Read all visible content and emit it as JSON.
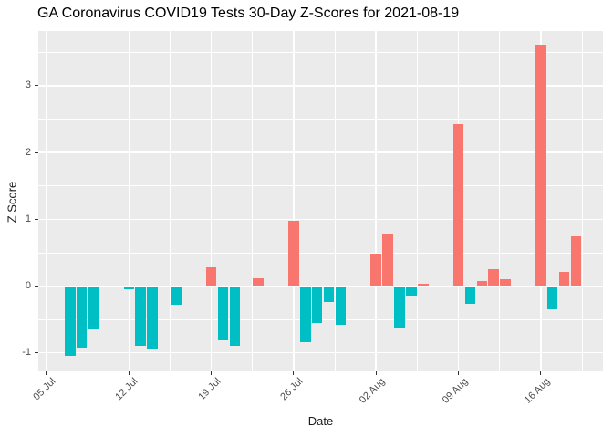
{
  "chart_data": {
    "type": "bar",
    "title": "GA Coronavirus COVID19 Tests 30-Day Z-Scores for 2021-08-19",
    "xlabel": "Date",
    "ylabel": "Z Score",
    "legend": "none",
    "grid": {
      "panel_bg": "#EBEBEB",
      "major": "#FFFFFF",
      "minor": "#FFFFFF"
    },
    "colors": {
      "positive": "#F8766D",
      "negative": "#00BFC4",
      "axis_text": "#4D4D4D"
    },
    "y_ticks": [
      -1,
      0,
      1,
      2,
      3
    ],
    "ylim": [
      -1.28,
      3.82
    ],
    "x_ticks": [
      {
        "label": "05 Jul",
        "date": "2021-07-05"
      },
      {
        "label": "12 Jul",
        "date": "2021-07-12"
      },
      {
        "label": "19 Jul",
        "date": "2021-07-19"
      },
      {
        "label": "26 Jul",
        "date": "2021-07-26"
      },
      {
        "label": "02 Aug",
        "date": "2021-08-02"
      },
      {
        "label": "09 Aug",
        "date": "2021-08-09"
      },
      {
        "label": "16 Aug",
        "date": "2021-08-16"
      }
    ],
    "xlim": [
      "2021-07-04",
      "2021-08-21"
    ],
    "bars": [
      {
        "date": "2021-07-07",
        "value": -1.05
      },
      {
        "date": "2021-07-08",
        "value": -0.92
      },
      {
        "date": "2021-07-09",
        "value": -0.65
      },
      {
        "date": "2021-07-12",
        "value": -0.05
      },
      {
        "date": "2021-07-13",
        "value": -0.9
      },
      {
        "date": "2021-07-14",
        "value": -0.95
      },
      {
        "date": "2021-07-16",
        "value": -0.28
      },
      {
        "date": "2021-07-19",
        "value": 0.28
      },
      {
        "date": "2021-07-20",
        "value": -0.81
      },
      {
        "date": "2021-07-21",
        "value": -0.89
      },
      {
        "date": "2021-07-23",
        "value": 0.12
      },
      {
        "date": "2021-07-26",
        "value": 0.97
      },
      {
        "date": "2021-07-27",
        "value": -0.84
      },
      {
        "date": "2021-07-28",
        "value": -0.56
      },
      {
        "date": "2021-07-29",
        "value": -0.24
      },
      {
        "date": "2021-07-30",
        "value": -0.58
      },
      {
        "date": "2021-08-02",
        "value": 0.48
      },
      {
        "date": "2021-08-03",
        "value": 0.79
      },
      {
        "date": "2021-08-04",
        "value": -0.64
      },
      {
        "date": "2021-08-05",
        "value": -0.15
      },
      {
        "date": "2021-08-06",
        "value": 0.03
      },
      {
        "date": "2021-08-09",
        "value": 2.43
      },
      {
        "date": "2021-08-10",
        "value": -0.26
      },
      {
        "date": "2021-08-11",
        "value": 0.07
      },
      {
        "date": "2021-08-12",
        "value": 0.25
      },
      {
        "date": "2021-08-13",
        "value": 0.1
      },
      {
        "date": "2021-08-16",
        "value": 3.62
      },
      {
        "date": "2021-08-17",
        "value": -0.35
      },
      {
        "date": "2021-08-18",
        "value": 0.21
      },
      {
        "date": "2021-08-19",
        "value": 0.75
      }
    ]
  }
}
